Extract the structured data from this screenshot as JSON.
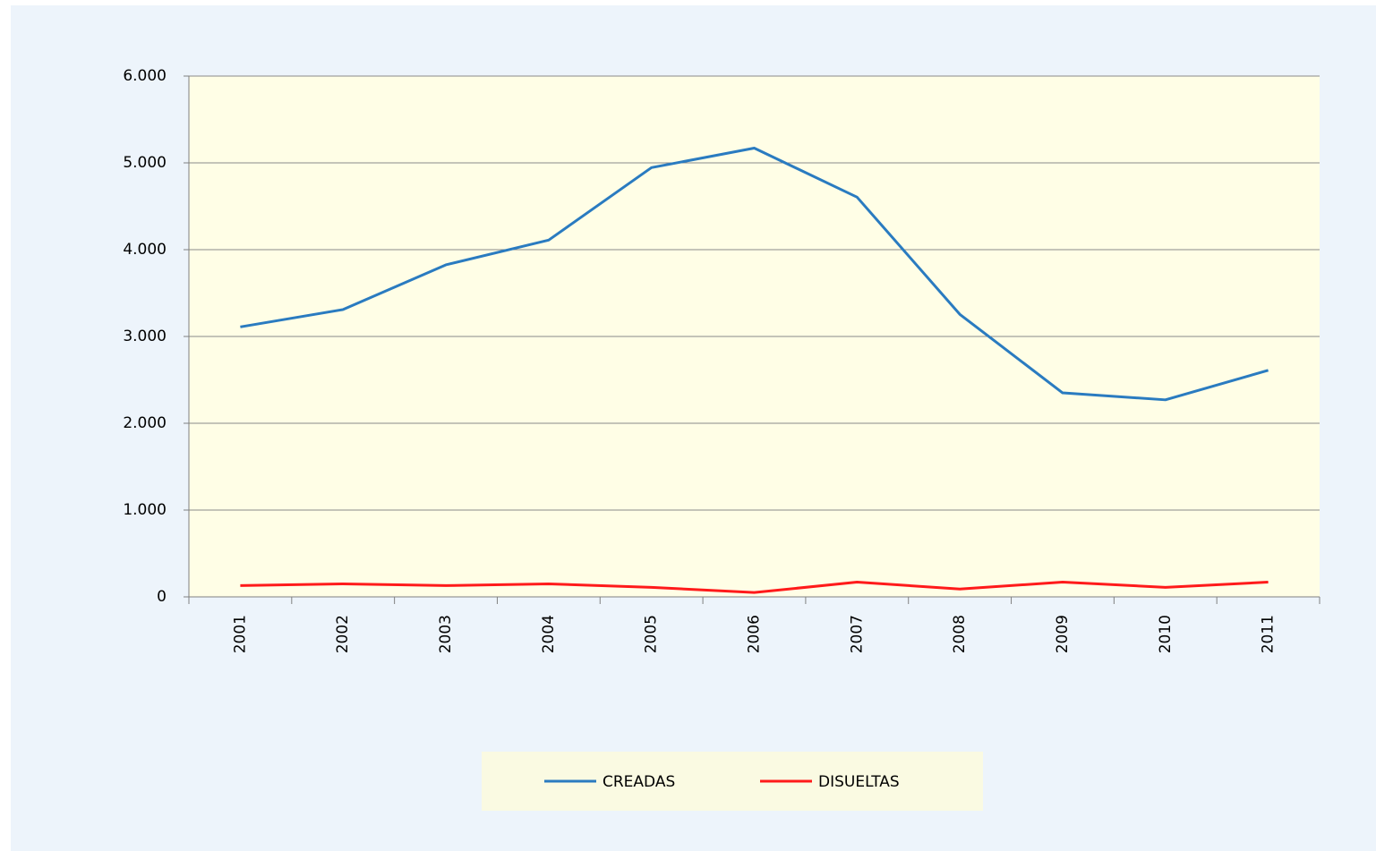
{
  "chart_data": {
    "type": "line",
    "categories": [
      "2001",
      "2002",
      "2003",
      "2004",
      "2005",
      "2006",
      "2007",
      "2008",
      "2009",
      "2010",
      "2011"
    ],
    "series": [
      {
        "name": "CREADAS",
        "color": "#2a7bc0",
        "values": [
          3110,
          3310,
          3825,
          4110,
          4945,
          5170,
          4605,
          3255,
          2350,
          2270,
          2610
        ]
      },
      {
        "name": "DISUELTAS",
        "color": "#ff1a1a",
        "values": [
          130,
          150,
          130,
          150,
          110,
          50,
          170,
          90,
          170,
          110,
          170
        ]
      }
    ],
    "ylim": [
      0,
      6000
    ],
    "yticks": [
      0,
      {
        "value": 1000,
        "label": "1.000"
      },
      {
        "value": 2000,
        "label": "2.000"
      },
      {
        "value": 3000,
        "label": "3.000"
      },
      {
        "value": 4000,
        "label": "4.000"
      },
      {
        "value": 5000,
        "label": "5.000"
      },
      {
        "value": 6000,
        "label": "6.000"
      }
    ],
    "grid": true,
    "legend": "bottom"
  }
}
